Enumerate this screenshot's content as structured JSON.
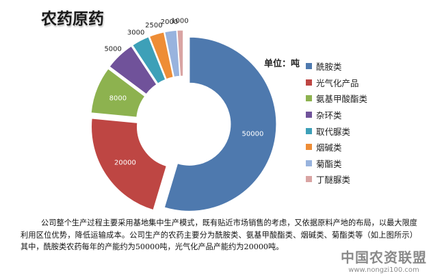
{
  "chart_data": {
    "type": "pie",
    "title": "农药原药",
    "unit_label": "单位：吨",
    "colors": [
      "#4E79AE",
      "#BE4643",
      "#8DB24F",
      "#70529A",
      "#3DA0B8",
      "#EE8D36",
      "#98B3DE",
      "#D9A4A3"
    ],
    "slices": [
      {
        "label": "酰胺类",
        "value": 50000,
        "value_label": "50000"
      },
      {
        "label": "光气化产品",
        "value": 20000,
        "value_label": "20000"
      },
      {
        "label": "氨基甲酸酯类",
        "value": 8000,
        "value_label": "8000"
      },
      {
        "label": "杂环类",
        "value": 5000,
        "value_label": "5000"
      },
      {
        "label": "取代脲类",
        "value": 3000,
        "value_label": "3000"
      },
      {
        "label": "烟碱类",
        "value": 2500,
        "value_label": "2500"
      },
      {
        "label": "菊酯类",
        "value": 2000,
        "value_label": "2000"
      },
      {
        "label": "丁醚脲类",
        "value": 1000,
        "value_label": "1000"
      }
    ],
    "legend_position": "right"
  },
  "paragraph": "公司整个生产过程主要采用基地集中生产模式，既有贴近市场销售的考虑，又依据原料产地的布局，以最大限度利用区位优势，降低运输成本。公司生产的农药主要分为酰胺类、氨基甲酸酯类、烟碱类、菊酯类等（如上图所示）其中，酰胺类农药每年的产能约为50000吨，光气化产品产能约为20000吨。",
  "watermark": {
    "main": "中国农资联盟",
    "url": "www.nongzi100.com"
  }
}
